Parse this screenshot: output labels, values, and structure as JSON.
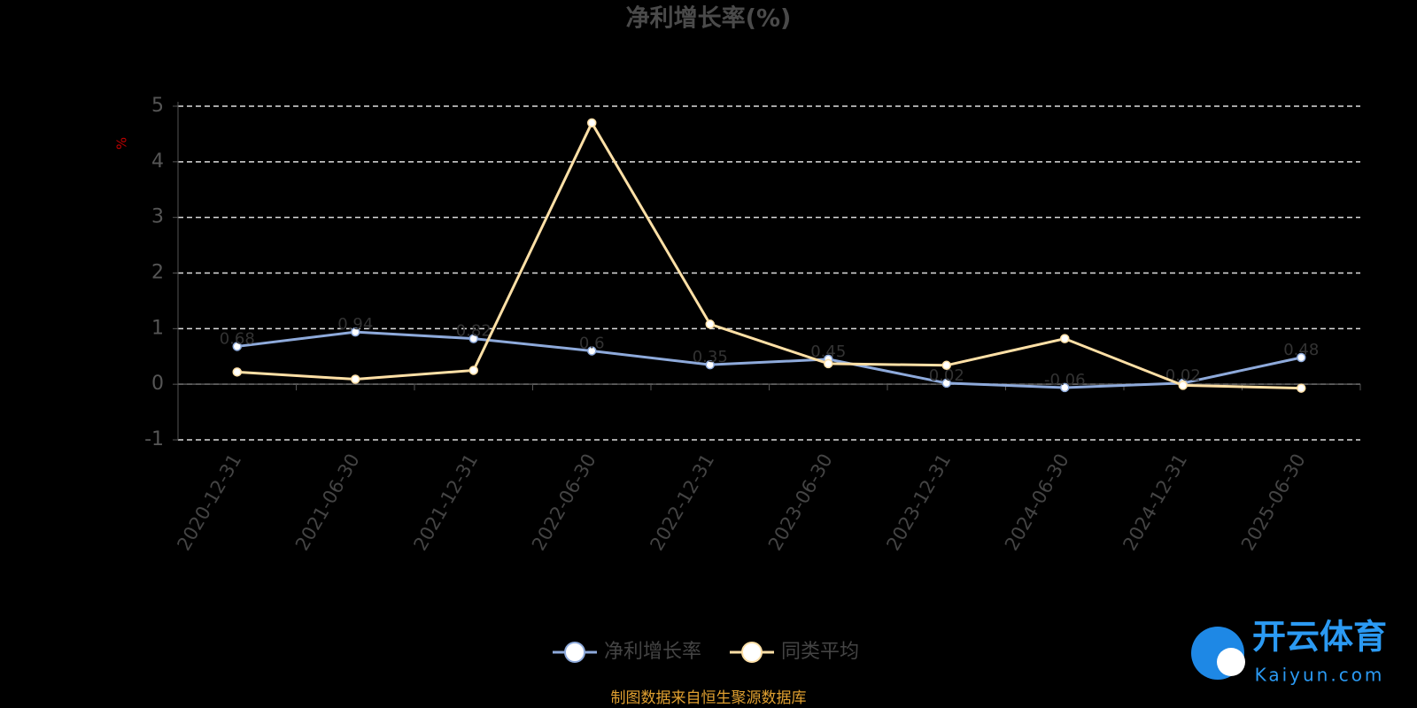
{
  "chart_data": {
    "type": "line",
    "title": "净利增长率(%)",
    "y_label": "%",
    "categories": [
      "2020-12-31",
      "2021-06-30",
      "2021-12-31",
      "2022-06-30",
      "2022-12-31",
      "2023-06-30",
      "2023-12-31",
      "2024-06-30",
      "2024-12-31",
      "2025-06-30"
    ],
    "series": [
      {
        "name": "净利增长率",
        "color": "#8eaadb",
        "values": [
          0.68,
          0.94,
          0.82,
          0.6,
          0.35,
          0.45,
          0.02,
          -0.06,
          0.02,
          0.48
        ]
      },
      {
        "name": "同类平均",
        "color": "#ffe0a6",
        "values": [
          0.22,
          0.09,
          0.25,
          4.7,
          1.08,
          0.37,
          0.34,
          0.82,
          -0.02,
          -0.07
        ]
      }
    ],
    "ylim": [
      -1,
      5
    ],
    "yticks": [
      -1,
      0,
      1,
      2,
      3,
      4,
      5
    ],
    "grid": true,
    "legend": "bottom",
    "source": "制图数据来自恒生聚源数据库",
    "watermark": {
      "brand": "开云体育",
      "site": "Kaiyun.com"
    }
  }
}
